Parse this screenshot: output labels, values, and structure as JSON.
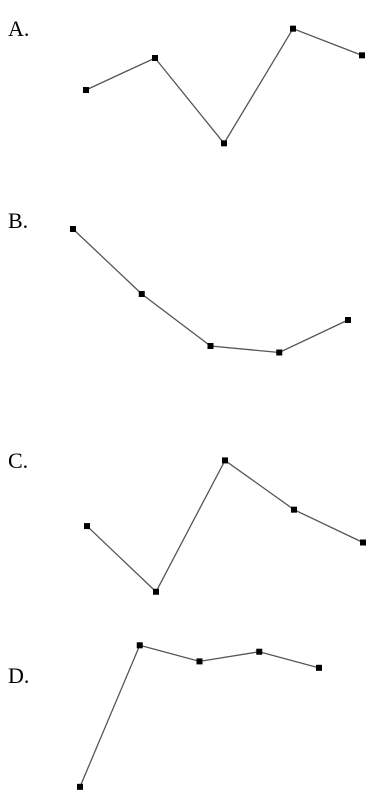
{
  "chart_data": [
    {
      "type": "line",
      "label": "A.",
      "x": [
        1,
        2,
        3,
        4,
        5
      ],
      "values": [
        3,
        4.2,
        1,
        5.3,
        4.3
      ],
      "ylim": [
        0,
        6
      ]
    },
    {
      "type": "line",
      "label": "B.",
      "x": [
        1,
        2,
        3,
        4,
        5
      ],
      "values": [
        6,
        4,
        2.4,
        2.2,
        3.2
      ],
      "ylim": [
        0,
        6
      ]
    },
    {
      "type": "line",
      "label": "C.",
      "x": [
        1,
        2,
        3,
        4,
        5
      ],
      "values": [
        3.5,
        1.5,
        5.5,
        4,
        3
      ],
      "ylim": [
        0,
        6
      ]
    },
    {
      "type": "line",
      "label": "D.",
      "x": [
        1,
        2,
        3,
        4,
        5
      ],
      "values": [
        1,
        5.4,
        4.9,
        5.2,
        4.7
      ],
      "ylim": [
        0,
        6
      ]
    }
  ],
  "colors": {
    "line": "#555555",
    "marker": "#000000",
    "text": "#000000"
  }
}
